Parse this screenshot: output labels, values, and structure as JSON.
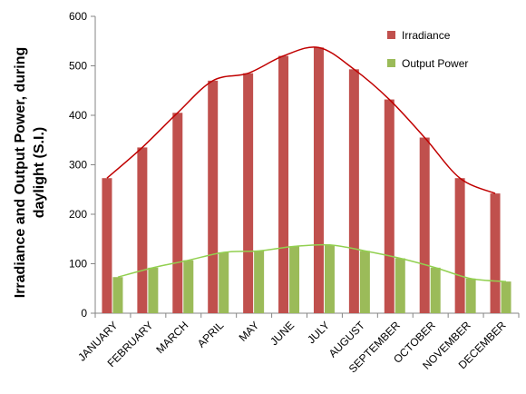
{
  "chart_data": {
    "type": "bar",
    "categories": [
      "JANUARY",
      "FEBRUARY",
      "MARCH",
      "APRIL",
      "MAY",
      "JUNE",
      "JULY",
      "AUGUST",
      "SEPTEMBER",
      "OCTOBER",
      "NOVEMBER",
      "DECEMBER"
    ],
    "series": [
      {
        "name": "Irradiance",
        "values": [
          273,
          335,
          405,
          470,
          485,
          520,
          537,
          493,
          432,
          355,
          273,
          242
        ]
      },
      {
        "name": "Output Power",
        "values": [
          73,
          92,
          107,
          123,
          126,
          135,
          138,
          126,
          111,
          92,
          70,
          64
        ]
      }
    ],
    "title": "",
    "xlabel": "",
    "ylabel_lines": [
      "Irradiance and Output Power, during",
      "daylight (S.I.)"
    ],
    "ylim": [
      0,
      600
    ],
    "yticks": [
      0,
      100,
      200,
      300,
      400,
      500,
      600
    ],
    "grid": false,
    "trendlines": true,
    "legend_position": "top-right",
    "colors": {
      "Irradiance": "#C0504D",
      "Output Power": "#9BBB59",
      "Irradiance_trend": "#C00000",
      "Output Power_trend": "#92D050"
    }
  }
}
